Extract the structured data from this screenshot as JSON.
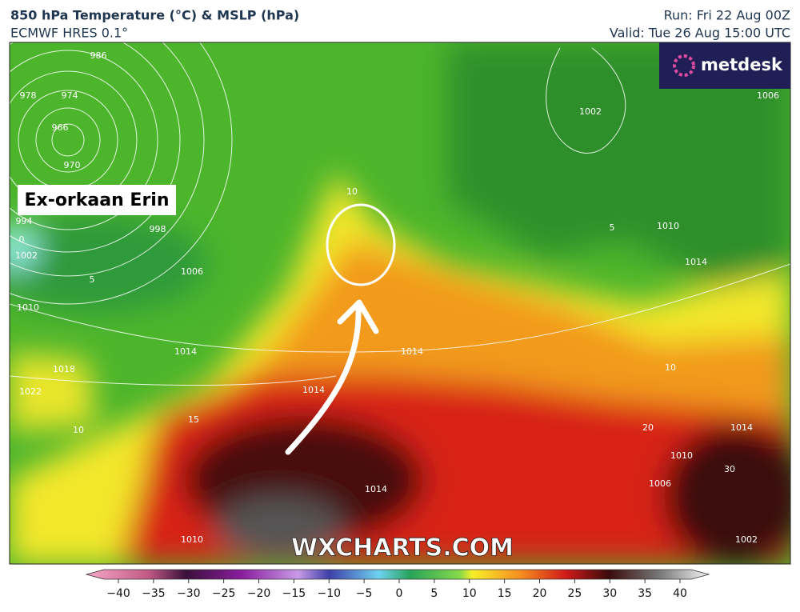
{
  "header": {
    "title": "850 hPa Temperature (°C) & MSLP (hPa)",
    "subtitle": "ECMWF HRES 0.1°",
    "run": "Run: Fri 22 Aug 00Z",
    "valid": "Valid: Tue 26 Aug 15:00 UTC"
  },
  "logo": "metdesk",
  "map": {
    "annotation": "Ex-orkaan Erin",
    "watermark": "WXCHARTS.COM",
    "contour_labels": [
      "986",
      "974",
      "966",
      "970",
      "978",
      "994",
      "998",
      "1006",
      "1002",
      "1010",
      "1014",
      "1018",
      "1022",
      "10",
      "15",
      "5",
      "0",
      "10",
      "5",
      "1010",
      "1014",
      "1002",
      "1006",
      "1014",
      "1014",
      "10",
      "20",
      "1014",
      "1010",
      "1014",
      "1010",
      "1002",
      "30",
      "1006"
    ]
  },
  "colorbar": {
    "ticks": [
      "−40",
      "−35",
      "−30",
      "−25",
      "−20",
      "−15",
      "−10",
      "−5",
      "0",
      "5",
      "10",
      "15",
      "20",
      "25",
      "30",
      "35",
      "40"
    ]
  }
}
